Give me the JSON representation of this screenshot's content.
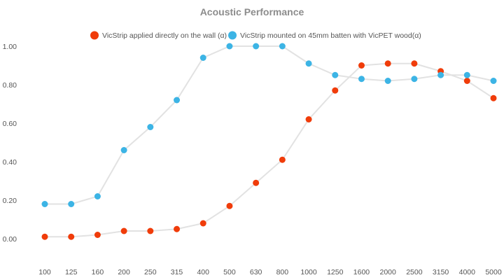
{
  "chart_data": {
    "type": "line",
    "title": "Acoustic Performance",
    "xlabel": "",
    "ylabel": "",
    "categories": [
      "100",
      "125",
      "160",
      "200",
      "250",
      "315",
      "400",
      "500",
      "630",
      "800",
      "1000",
      "1250",
      "1600",
      "2000",
      "2500",
      "3150",
      "4000",
      "5000"
    ],
    "y_ticks": [
      "0.00",
      "0.20",
      "0.40",
      "0.60",
      "0.80",
      "1.00"
    ],
    "ylim": [
      -0.12,
      1.1
    ],
    "grid": false,
    "legend_position": "top-center",
    "line_color": "#e2e2e2",
    "series": [
      {
        "name": "VicStrip applied directly on the wall (α)",
        "color": "#f03c0a",
        "values": [
          0.01,
          0.01,
          0.02,
          0.04,
          0.04,
          0.05,
          0.08,
          0.17,
          0.29,
          0.41,
          0.62,
          0.77,
          0.9,
          0.91,
          0.91,
          0.87,
          0.82,
          0.73
        ]
      },
      {
        "name": "VicStrip mounted on 45mm batten with VicPET wood(α)",
        "color": "#3cb4e5",
        "values": [
          0.18,
          0.18,
          0.22,
          0.46,
          0.58,
          0.72,
          0.94,
          1.0,
          1.0,
          1.0,
          0.91,
          0.85,
          0.83,
          0.82,
          0.83,
          0.85,
          0.85,
          0.82
        ]
      }
    ]
  }
}
